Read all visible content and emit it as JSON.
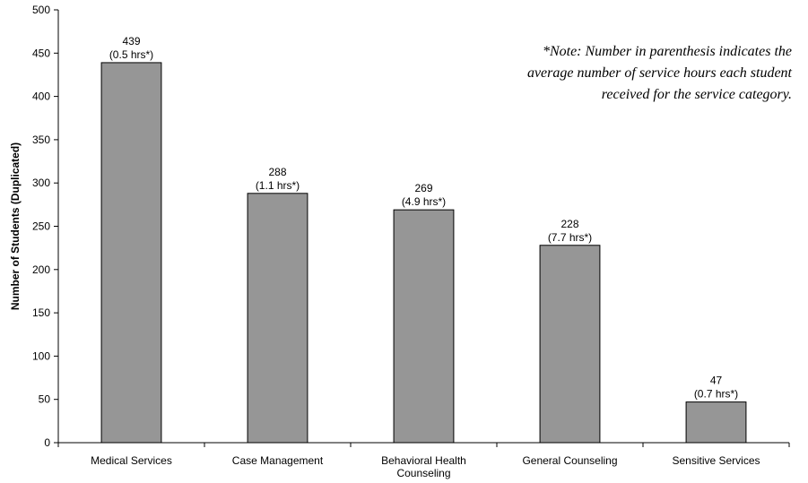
{
  "chart_data": {
    "type": "bar",
    "categories": [
      [
        "Medical Services"
      ],
      [
        "Case Management"
      ],
      [
        "Behavioral Health",
        "Counseling"
      ],
      [
        "General Counseling"
      ],
      [
        "Sensitive Services"
      ]
    ],
    "values": [
      439,
      288,
      269,
      228,
      47
    ],
    "value_labels": [
      "439",
      "288",
      "269",
      "228",
      "47"
    ],
    "hour_labels": [
      "(0.5 hrs*)",
      "(1.1 hrs*)",
      "(4.9 hrs*)",
      "(7.7 hrs*)",
      "(0.7 hrs*)"
    ],
    "ylabel": "Number of Students (Duplicated)",
    "xlabel": "",
    "ylim": [
      0,
      500
    ],
    "yticks": [
      0,
      50,
      100,
      150,
      200,
      250,
      300,
      350,
      400,
      450,
      500
    ],
    "grid": false,
    "bar_color": "#969696",
    "bar_edge_color": "#000000",
    "note_lines": [
      "*Note: Number in parenthesis indicates the",
      "average number of service hours each student",
      "received for the service category."
    ]
  }
}
